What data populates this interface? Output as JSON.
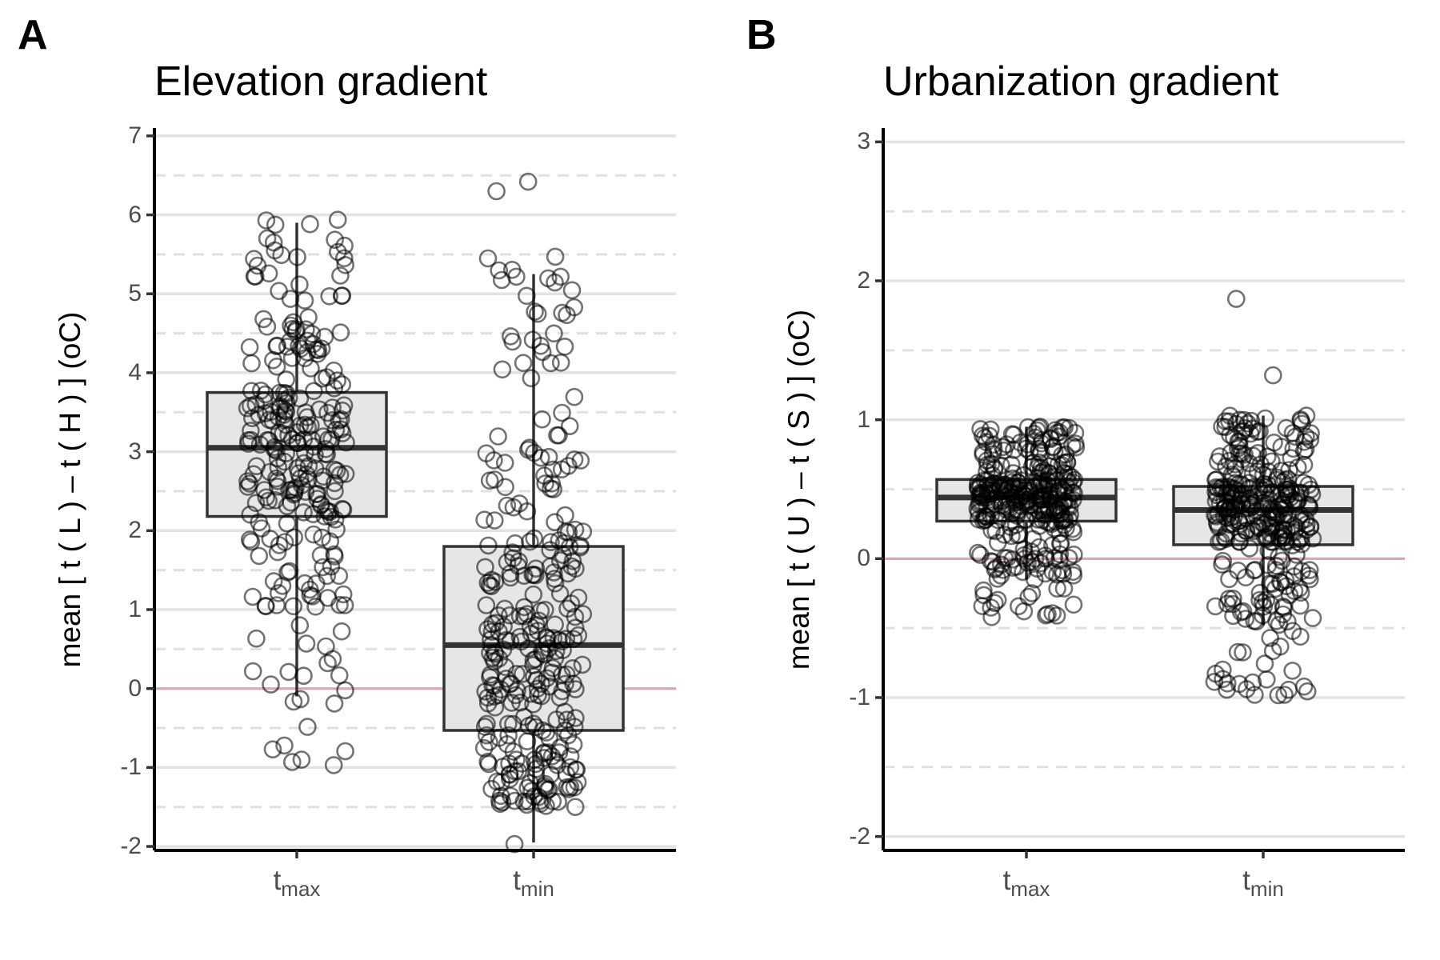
{
  "figure": {
    "panels": [
      {
        "letter": "A",
        "title": "Elevation gradient",
        "ylabel": "mean [ t ( L ) – t ( H ) ] (oC)",
        "yticks": [
          "-2",
          "-1",
          "0",
          "1",
          "2",
          "3",
          "4",
          "5",
          "6",
          "7"
        ],
        "xticks": [
          {
            "base": "t",
            "sub": "max"
          },
          {
            "base": "t",
            "sub": "min"
          }
        ]
      },
      {
        "letter": "B",
        "title": "Urbanization gradient",
        "ylabel": "mean [ t ( U ) – t ( S ) ] (oC)",
        "yticks": [
          "-2",
          "-1",
          "0",
          "1",
          "2",
          "3"
        ],
        "xticks": [
          {
            "base": "t",
            "sub": "max"
          },
          {
            "base": "t",
            "sub": "min"
          }
        ]
      }
    ]
  },
  "chart_data": [
    {
      "type": "box",
      "title": "Elevation gradient",
      "ylabel": "mean [ t ( L ) – t ( H ) ] (oC)",
      "categories": [
        "tmax",
        "tmin"
      ],
      "ylim": [
        -2.05,
        7.1
      ],
      "ymajor": [
        -2,
        -1,
        0,
        1,
        2,
        3,
        4,
        5,
        6,
        7
      ],
      "yminor": [
        -1.5,
        -0.5,
        0.5,
        1.5,
        2.5,
        3.5,
        4.5,
        5.5,
        6.5
      ],
      "reference_line": 0,
      "reference_color": "#d9a7b4",
      "box_fill": "#e6e6e6",
      "point_color": "#000000",
      "boxes": [
        {
          "category": "tmax",
          "whisker_low": -0.1,
          "q1": 2.18,
          "median": 3.05,
          "q3": 3.75,
          "whisker_high": 5.9
        },
        {
          "category": "tmin",
          "whisker_low": -1.95,
          "q1": -0.53,
          "median": 0.55,
          "q3": 1.8,
          "whisker_high": 5.25
        }
      ],
      "points": [
        {
          "category": "tmax",
          "n": 260,
          "seed": 11,
          "dist": [
            [
              -0.95,
              -0.3,
              0.02
            ],
            [
              -0.3,
              1.0,
              0.06
            ],
            [
              1.0,
              2.18,
              0.17
            ],
            [
              2.18,
              3.05,
              0.25
            ],
            [
              3.05,
              3.75,
              0.25
            ],
            [
              3.75,
              4.6,
              0.15
            ],
            [
              4.6,
              5.95,
              0.1
            ]
          ],
          "extra": [
            -0.97,
            -0.93,
            5.93,
            5.65,
            5.55,
            5.45
          ]
        },
        {
          "category": "tmin",
          "n": 300,
          "seed": 23,
          "dist": [
            [
              -1.5,
              -0.53,
              0.25
            ],
            [
              -0.53,
              0.55,
              0.25
            ],
            [
              0.55,
              1.8,
              0.25
            ],
            [
              1.8,
              3.0,
              0.13
            ],
            [
              3.0,
              4.7,
              0.07
            ],
            [
              4.7,
              5.45,
              0.05
            ]
          ],
          "extra": [
            -1.97,
            -1.5,
            6.42,
            6.3,
            5.47
          ]
        }
      ]
    },
    {
      "type": "box",
      "title": "Urbanization gradient",
      "ylabel": "mean [ t ( U ) – t ( S ) ] (oC)",
      "categories": [
        "tmax",
        "tmin"
      ],
      "ylim": [
        -2.1,
        3.1
      ],
      "ymajor": [
        -2,
        -1,
        0,
        1,
        2,
        3
      ],
      "yminor": [
        -1.5,
        -0.5,
        0.5,
        1.5,
        2.5
      ],
      "reference_line": 0,
      "reference_color": "#d9a7b4",
      "box_fill": "#e6e6e6",
      "point_color": "#000000",
      "boxes": [
        {
          "category": "tmax",
          "whisker_low": -0.15,
          "q1": 0.27,
          "median": 0.44,
          "q3": 0.57,
          "whisker_high": 0.95
        },
        {
          "category": "tmin",
          "whisker_low": -0.48,
          "q1": 0.1,
          "median": 0.35,
          "q3": 0.52,
          "whisker_high": 1.03
        }
      ],
      "points": [
        {
          "category": "tmax",
          "n": 330,
          "seed": 37,
          "dist": [
            [
              -0.42,
              -0.15,
              0.05
            ],
            [
              -0.15,
              0.27,
              0.2
            ],
            [
              0.27,
              0.44,
              0.25
            ],
            [
              0.44,
              0.57,
              0.25
            ],
            [
              0.57,
              0.95,
              0.25
            ]
          ],
          "extra": [
            -0.42,
            0.95
          ]
        },
        {
          "category": "tmin",
          "n": 330,
          "seed": 53,
          "dist": [
            [
              -1.0,
              -0.48,
              0.07
            ],
            [
              -0.48,
              0.1,
              0.18
            ],
            [
              0.1,
              0.35,
              0.25
            ],
            [
              0.35,
              0.52,
              0.25
            ],
            [
              0.52,
              1.03,
              0.25
            ]
          ],
          "extra": [
            -0.98,
            -0.98,
            1.32,
            1.87
          ]
        }
      ]
    }
  ]
}
